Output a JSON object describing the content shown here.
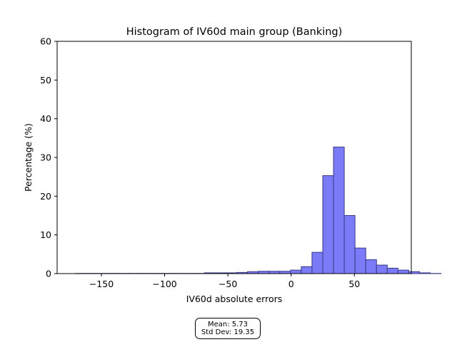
{
  "chart_data": {
    "type": "bar",
    "title": "Histogram of IV60d main group (Banking)",
    "xlabel": "IV60d absolute errors",
    "ylabel": "Percentage (%)",
    "xlim": [
      -185,
      95
    ],
    "ylim": [
      0,
      60
    ],
    "xticks": [
      -150,
      -100,
      -50,
      0,
      50
    ],
    "xtick_labels": [
      "−150",
      "−100",
      "−50",
      "0",
      "50"
    ],
    "yticks": [
      0,
      10,
      20,
      30,
      40,
      50,
      60
    ],
    "ytick_labels": [
      "0",
      "10",
      "20",
      "30",
      "40",
      "50",
      "60"
    ],
    "bin_width": 8.5,
    "bin_edges_start": -170.5,
    "values": [
      0.05,
      0.05,
      0.05,
      0.05,
      0.05,
      0.05,
      0.05,
      0.05,
      0.05,
      0.05,
      0.05,
      0.05,
      0.2,
      0.2,
      0.2,
      0.3,
      0.5,
      0.6,
      0.6,
      0.6,
      0.9,
      1.8,
      5.5,
      25.3,
      32.7,
      15.0,
      6.6,
      3.6,
      2.2,
      1.4,
      0.9,
      0.5,
      0.2,
      0.05
    ],
    "bar_color": "#7b7bf7",
    "bar_edge_color": "#3a3a8a",
    "grid": false
  },
  "stats": {
    "mean": "Mean: 5.73",
    "std": "Std Dev: 19.35"
  }
}
